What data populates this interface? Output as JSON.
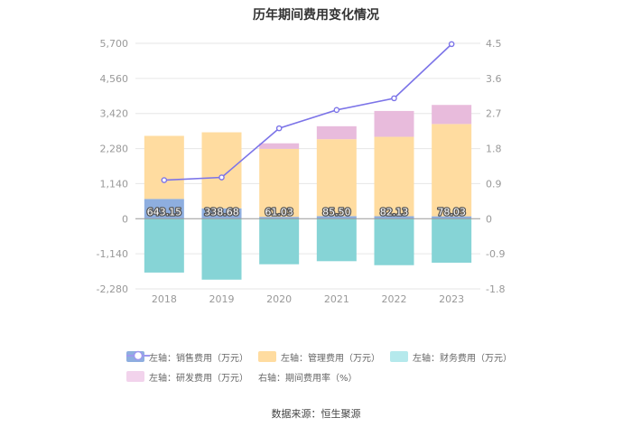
{
  "chart_data": {
    "type": "bar",
    "title": "历年期间费用变化情况",
    "categories": [
      "2018",
      "2019",
      "2020",
      "2021",
      "2022",
      "2023"
    ],
    "left_axis": {
      "ticks": [
        5700,
        4560,
        3420,
        2280,
        1140,
        0,
        -1140,
        -2280
      ],
      "tick_labels": [
        "5,700",
        "4,560",
        "3,420",
        "2,280",
        "1,140",
        "0",
        "-1,140",
        "-2,280"
      ],
      "ylim": [
        -2280,
        5700
      ]
    },
    "right_axis": {
      "ticks": [
        4.5,
        3.6,
        2.7,
        1.8,
        0.9,
        0,
        -0.9,
        -1.8
      ],
      "tick_labels": [
        "4.5",
        "3.6",
        "2.7",
        "1.8",
        "0.9",
        "0",
        "-0.9",
        "-1.8"
      ],
      "ylim": [
        -1.8,
        4.5
      ]
    },
    "series": [
      {
        "name": "左轴：销售费用（万元）",
        "axis": "left",
        "kind": "bar",
        "color": "#8eaedf",
        "values": [
          643.15,
          338.68,
          61.03,
          85.5,
          82.13,
          78.03
        ],
        "labels": [
          "643.15",
          "338.68",
          "61.03",
          "85.50",
          "82.13",
          "78.03"
        ]
      },
      {
        "name": "左轴：管理费用（万元）",
        "axis": "left",
        "kind": "bar",
        "color": "#ffdca0",
        "values": [
          2050,
          2470,
          2210,
          2500,
          2580,
          3000
        ]
      },
      {
        "name": "左轴：财务费用（万元）",
        "axis": "left",
        "kind": "bar",
        "color": "#86d4d6",
        "values": [
          -1750,
          -1980,
          -1480,
          -1380,
          -1510,
          -1430
        ]
      },
      {
        "name": "左轴：研发费用（万元）",
        "axis": "left",
        "kind": "bar",
        "color": "#e8bbdc",
        "values": [
          0,
          0,
          180,
          420,
          840,
          620
        ]
      },
      {
        "name": "右轴：期间费用率（%）",
        "axis": "right",
        "kind": "line",
        "color": "#7c74e8",
        "values": [
          0.99,
          1.06,
          2.32,
          2.79,
          3.09,
          4.48
        ]
      }
    ]
  },
  "source": "数据来源：恒生聚源"
}
